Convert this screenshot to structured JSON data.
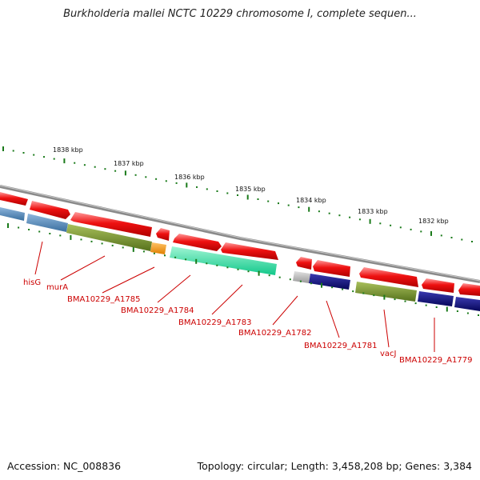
{
  "title": "Burkholderia mallei NCTC 10229 chromosome I, complete sequen...",
  "footer": {
    "accession": "Accession: NC_008836",
    "summary": "Topology: circular; Length: 3,458,208 bp; Genes: 3,384"
  },
  "ticks": [
    "1838 kbp",
    "1837 kbp",
    "1836 kbp",
    "1835 kbp",
    "1834 kbp",
    "1833 kbp",
    "1832 kbp"
  ],
  "genes": [
    {
      "name": "hisG"
    },
    {
      "name": "murA"
    },
    {
      "name": "BMA10229_A1785"
    },
    {
      "name": "BMA10229_A1784"
    },
    {
      "name": "BMA10229_A1783"
    },
    {
      "name": "BMA10229_A1782"
    },
    {
      "name": "BMA10229_A1781"
    },
    {
      "name": "vacJ"
    },
    {
      "name": "BMA10229_A1779"
    }
  ],
  "colors": {
    "cds": "#ee1111",
    "backbone": "#888888",
    "tick_marks": "#1a7a1a",
    "label": "#cc0000",
    "cog_blue": "#4f86b6",
    "cog_olive": "#6f8f2a",
    "cog_orange": "#f59a10",
    "cog_cyan": "#22e0a0",
    "cog_grey": "#b8b8b8",
    "cog_navy": "#0d0d80"
  }
}
